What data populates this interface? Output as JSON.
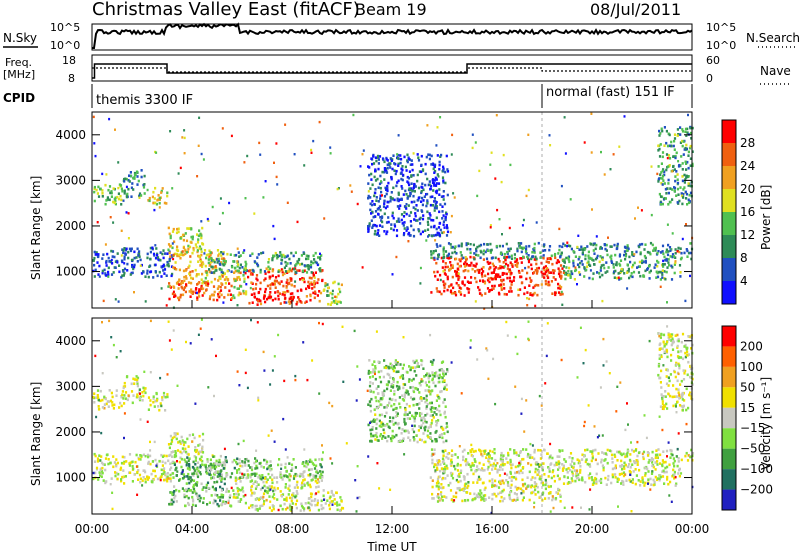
{
  "header": {
    "station": "Christmas Valley East (fitACF)",
    "beam": "Beam 19",
    "date": "08/Jul/2011"
  },
  "labels": {
    "nsky": "N.Sky",
    "nsearch": "N.Search",
    "freq_line1": "Freq.",
    "freq_line2": "[MHz]",
    "nave": "Nave",
    "cpid": "CPID",
    "ylabel": "Slant Range [km]",
    "xlabel": "Time UT",
    "power_label": "Power [dB]",
    "velocity_label": "Velocity [m s⁻¹]"
  },
  "noise_axis": {
    "left_top": "10^5",
    "left_bottom": "10^0",
    "right_top": "10^5",
    "right_bottom": "10^0"
  },
  "freq_axis": {
    "left_top": "18",
    "left_bottom": "8",
    "right_top": "60",
    "right_bottom": "0"
  },
  "cpid": [
    {
      "label": "themis 3300 IF",
      "start": 0,
      "end": 18
    },
    {
      "label": "normal (fast) 151 IF",
      "start": 18,
      "end": 24
    }
  ],
  "chart_data": [
    {
      "type": "heatmap",
      "name": "power",
      "x_ticks": [
        "00:00",
        "04:00",
        "08:00",
        "12:00",
        "16:00",
        "20:00",
        "00:00"
      ],
      "xlim": [
        0,
        24
      ],
      "ylim": [
        200,
        4500
      ],
      "y_ticks": [
        1000,
        2000,
        3000,
        4000
      ],
      "colorbar": {
        "label": "Power [dB]",
        "ticks": [
          4,
          8,
          12,
          16,
          20,
          24,
          28
        ],
        "colors": [
          "#1010ff",
          "#2050c0",
          "#2e8b57",
          "#50c050",
          "#e0e020",
          "#f0a020",
          "#f06010",
          "#ff0000"
        ]
      },
      "regions": [
        {
          "t0": 0.0,
          "t1": 1.2,
          "r0": 2500,
          "r1": 2950,
          "level": 0.45
        },
        {
          "t0": 1.2,
          "t1": 2.1,
          "r0": 2650,
          "r1": 3250,
          "level": 0.3
        },
        {
          "t0": 2.2,
          "t1": 3.0,
          "r0": 2500,
          "r1": 2900,
          "level": 0.55
        },
        {
          "t0": 0.0,
          "t1": 3.2,
          "r0": 900,
          "r1": 1550,
          "level": 0.2
        },
        {
          "t0": 3.0,
          "t1": 4.4,
          "r0": 1350,
          "r1": 2000,
          "level": 0.55
        },
        {
          "t0": 3.2,
          "t1": 5.4,
          "r0": 750,
          "r1": 1500,
          "level": 0.65
        },
        {
          "t0": 3.0,
          "t1": 5.6,
          "r0": 400,
          "r1": 800,
          "level": 0.8
        },
        {
          "t0": 5.6,
          "t1": 6.2,
          "r0": 450,
          "r1": 1100,
          "level": 0.6
        },
        {
          "t0": 6.2,
          "t1": 9.2,
          "r0": 300,
          "r1": 1100,
          "level": 0.88
        },
        {
          "t0": 4.5,
          "t1": 9.2,
          "r0": 1000,
          "r1": 1450,
          "level": 0.35
        },
        {
          "t0": 9.2,
          "t1": 10.0,
          "r0": 300,
          "r1": 800,
          "level": 0.5
        },
        {
          "t0": 11.0,
          "t1": 14.2,
          "r0": 1800,
          "r1": 3600,
          "level": 0.15
        },
        {
          "t0": 13.5,
          "t1": 18.8,
          "r0": 500,
          "r1": 1350,
          "level": 0.9
        },
        {
          "t0": 13.5,
          "t1": 24.0,
          "r0": 1300,
          "r1": 1650,
          "level": 0.3
        },
        {
          "t0": 18.8,
          "t1": 23.5,
          "r0": 850,
          "r1": 1300,
          "level": 0.35
        },
        {
          "t0": 22.6,
          "t1": 24.0,
          "r0": 2500,
          "r1": 4200,
          "level": 0.35
        }
      ]
    },
    {
      "type": "heatmap",
      "name": "velocity",
      "x_ticks": [
        "00:00",
        "04:00",
        "08:00",
        "12:00",
        "16:00",
        "20:00",
        "00:00"
      ],
      "xlim": [
        0,
        24
      ],
      "ylim": [
        200,
        4500
      ],
      "y_ticks": [
        1000,
        2000,
        3000,
        4000
      ],
      "colorbar": {
        "label": "Velocity [m s⁻¹]",
        "ticks": [
          200,
          100,
          50,
          15,
          -15,
          -50,
          -100,
          -200
        ],
        "colors": [
          "#2020c0",
          "#207060",
          "#40a040",
          "#80e040",
          "#c8c8c0",
          "#f0e000",
          "#f0a020",
          "#ff6000",
          "#ff0000"
        ]
      },
      "regions": [
        {
          "t0": 0.0,
          "t1": 1.2,
          "r0": 2500,
          "r1": 2950,
          "level": 0.5
        },
        {
          "t0": 1.2,
          "t1": 2.1,
          "r0": 2650,
          "r1": 3250,
          "level": 0.5
        },
        {
          "t0": 2.2,
          "t1": 3.0,
          "r0": 2500,
          "r1": 2900,
          "level": 0.5
        },
        {
          "t0": 0.0,
          "t1": 3.2,
          "r0": 900,
          "r1": 1550,
          "level": 0.5
        },
        {
          "t0": 3.0,
          "t1": 4.4,
          "r0": 1350,
          "r1": 2000,
          "level": 0.5
        },
        {
          "t0": 3.2,
          "t1": 5.4,
          "r0": 750,
          "r1": 1500,
          "level": 0.3
        },
        {
          "t0": 3.0,
          "t1": 5.6,
          "r0": 400,
          "r1": 800,
          "level": 0.38
        },
        {
          "t0": 5.6,
          "t1": 6.2,
          "r0": 450,
          "r1": 1100,
          "level": 0.5
        },
        {
          "t0": 6.2,
          "t1": 9.2,
          "r0": 300,
          "r1": 1100,
          "level": 0.5
        },
        {
          "t0": 4.5,
          "t1": 9.2,
          "r0": 1000,
          "r1": 1450,
          "level": 0.38
        },
        {
          "t0": 9.2,
          "t1": 10.0,
          "r0": 300,
          "r1": 800,
          "level": 0.5
        },
        {
          "t0": 11.0,
          "t1": 14.2,
          "r0": 1800,
          "r1": 3600,
          "level": 0.4
        },
        {
          "t0": 13.5,
          "t1": 18.8,
          "r0": 500,
          "r1": 1350,
          "level": 0.5
        },
        {
          "t0": 13.5,
          "t1": 24.0,
          "r0": 1300,
          "r1": 1650,
          "level": 0.5
        },
        {
          "t0": 18.8,
          "t1": 23.5,
          "r0": 850,
          "r1": 1300,
          "level": 0.5
        },
        {
          "t0": 22.6,
          "t1": 24.0,
          "r0": 2500,
          "r1": 4200,
          "level": 0.5
        }
      ]
    }
  ]
}
